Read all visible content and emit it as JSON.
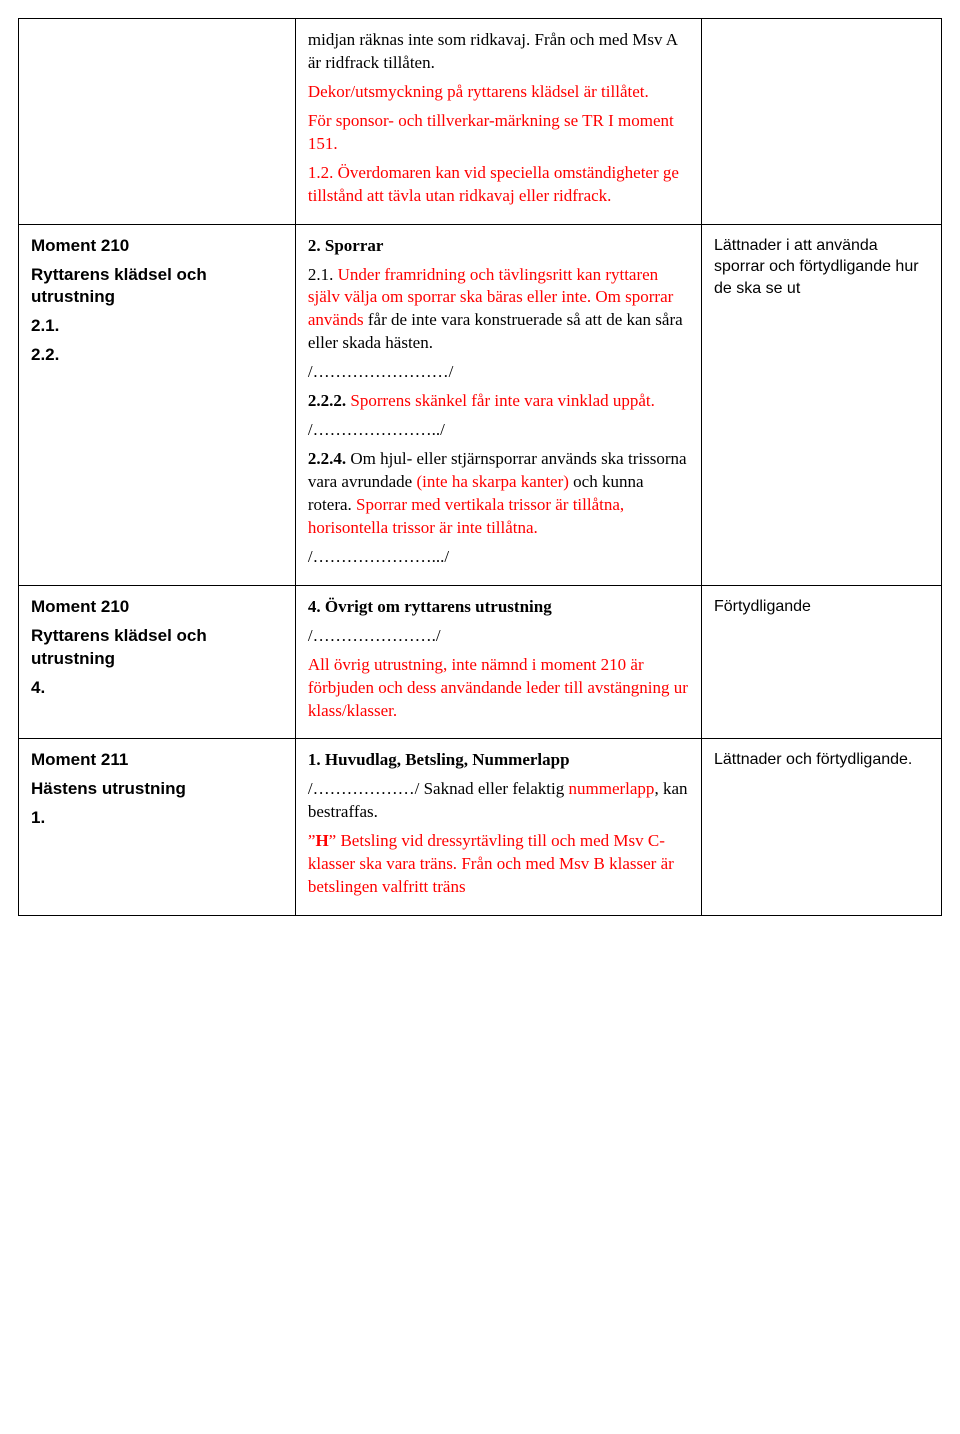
{
  "rows": [
    {
      "left": [],
      "mid": [
        {
          "text": "midjan räknas inte som ridkavaj. Från och med Msv A är ridfrack tillåten.",
          "red": false,
          "bold": false
        },
        {
          "text": "Dekor/utsmyckning på ryttarens klädsel är tillåtet.",
          "red": true,
          "bold": false
        },
        {
          "text": "För sponsor- och tillverkar-märkning se TR I moment 151.",
          "red": true,
          "bold": false
        },
        {
          "runs": [
            {
              "t": "1.2. ",
              "red": true,
              "bold": false
            },
            {
              "t": "Överdomaren kan vid speciella omständigheter ge tillstånd att tävla utan ridkavaj eller ridfrack.",
              "red": true,
              "bold": false
            }
          ]
        }
      ],
      "right": []
    },
    {
      "left": [
        {
          "text": "Moment 210",
          "cls": "left-title"
        },
        {
          "text": "Ryttarens klädsel och utrustning",
          "cls": "left-sub"
        },
        {
          "text": "2.1.",
          "cls": "left-sub"
        },
        {
          "text": "2.2.",
          "cls": "left-sub"
        }
      ],
      "mid": [
        {
          "runs": [
            {
              "t": "2.    ",
              "red": false,
              "bold": true
            },
            {
              "t": "Sporrar",
              "red": false,
              "bold": true
            }
          ]
        },
        {
          "runs": [
            {
              "t": "2.1. ",
              "red": false,
              "bold": false
            },
            {
              "t": "Under framridning och tävlingsritt kan ryttaren själv välja om sporrar ska bäras eller inte.",
              "red": true,
              "bold": false
            },
            {
              "t": " ",
              "red": false,
              "bold": false
            },
            {
              "t": "Om sporrar används",
              "red": true,
              "bold": false
            },
            {
              "t": " får de inte vara konstruerade så att de kan såra eller skada hästen.",
              "red": false,
              "bold": false
            }
          ]
        },
        {
          "text": "/……………………/",
          "red": false,
          "bold": false
        },
        {
          "runs": [
            {
              "t": "2.2.2. ",
              "red": false,
              "bold": true
            },
            {
              "t": "Sporrens skänkel får inte vara vinklad uppåt.",
              "red": true,
              "bold": false
            }
          ]
        },
        {
          "text": "/…………………../",
          "red": false,
          "bold": false
        },
        {
          "runs": [
            {
              "t": "2.2.4. ",
              "red": false,
              "bold": true
            },
            {
              "t": "Om hjul- eller stjärnsporrar används ska trissorna vara avrundade ",
              "red": false,
              "bold": false
            },
            {
              "t": "(inte ha skarpa kanter)",
              "red": true,
              "bold": false
            },
            {
              "t": " och kunna rotera. ",
              "red": false,
              "bold": false
            },
            {
              "t": "Sporrar med vertikala trissor är tillåtna, horisontella trissor är inte tillåtna.",
              "red": true,
              "bold": false
            }
          ]
        },
        {
          "text": "/………………….../",
          "red": false,
          "bold": false
        }
      ],
      "right": [
        {
          "text": "Lättnader i att använda sporrar och förtydligande hur de ska se ut",
          "cls": "sans"
        }
      ]
    },
    {
      "left": [
        {
          "text": "Moment 210",
          "cls": "left-title"
        },
        {
          "text": "Ryttarens klädsel och utrustning",
          "cls": "left-sub"
        },
        {
          "text": "4.",
          "cls": "left-sub"
        }
      ],
      "mid": [
        {
          "runs": [
            {
              "t": "4.    ",
              "red": false,
              "bold": true
            },
            {
              "t": "Övrigt om ryttarens utrustning",
              "red": false,
              "bold": true
            }
          ]
        },
        {
          "text": "/…………………./",
          "red": false,
          "bold": false
        },
        {
          "runs": [
            {
              "t": "All övrig utrustning, inte nämnd i moment 210 är förbjuden och dess användande leder till avstängning ur klass/klasser.",
              "red": true,
              "bold": false
            }
          ]
        }
      ],
      "right": [
        {
          "text": "Förtydligande",
          "cls": "sans"
        }
      ]
    },
    {
      "left": [
        {
          "text": "Moment 211",
          "cls": "left-title"
        },
        {
          "text": "Hästens utrustning",
          "cls": "left-sub"
        },
        {
          "text": "1.",
          "cls": "left-sub"
        }
      ],
      "mid": [
        {
          "runs": [
            {
              "t": "1.      ",
              "red": false,
              "bold": true
            },
            {
              "t": "Huvudlag, Betsling, Nummerlapp",
              "red": false,
              "bold": true
            }
          ],
          "cls": "indent-num2"
        },
        {
          "runs": [
            {
              "t": "/………………/ Saknad eller felaktig ",
              "red": false,
              "bold": false
            },
            {
              "t": "nummerlapp",
              "red": true,
              "bold": false
            },
            {
              "t": ", kan bestraffas.",
              "red": false,
              "bold": false
            }
          ]
        },
        {
          "runs": [
            {
              "t": "”",
              "red": true,
              "bold": false
            },
            {
              "t": "H",
              "red": true,
              "bold": true
            },
            {
              "t": "”",
              "red": true,
              "bold": false
            },
            {
              "t": "  Betsling vid dressyrtävling till och med Msv C-klasser ska vara träns.",
              "red": true,
              "bold": false
            },
            {
              "t": " Från och med Msv B klasser är betslingen valfritt träns",
              "red": true,
              "bold": false
            }
          ]
        }
      ],
      "right": [
        {
          "text": "Lättnader och förtydligande.",
          "cls": "sans"
        }
      ]
    }
  ]
}
